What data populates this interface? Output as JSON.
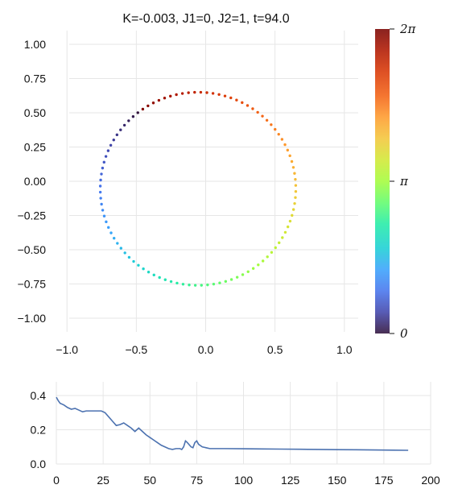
{
  "chart_data": [
    {
      "type": "scatter",
      "title": "K=-0.003, J1=0, J2=1, t=94.0",
      "xlim": [
        -1.1,
        1.1
      ],
      "ylim": [
        -1.1,
        1.1
      ],
      "xticks": [
        "−1.0",
        "−0.5",
        "0.0",
        "0.5",
        "1.0"
      ],
      "xtick_values": [
        -1.0,
        -0.5,
        0.0,
        0.5,
        1.0
      ],
      "yticks": [
        "1.00",
        "0.75",
        "0.50",
        "0.25",
        "0.00",
        "−0.25",
        "−0.50",
        "−0.75",
        "−1.00"
      ],
      "ytick_values": [
        1.0,
        0.75,
        0.5,
        0.25,
        0.0,
        -0.25,
        -0.5,
        -0.75,
        -1.0
      ],
      "grid": true,
      "series": [
        {
          "points_description": "points on a circle, phase from 0 (dark blue) to 2π (dark red)",
          "center": [
            -0.055,
            -0.055
          ],
          "radius": 0.705,
          "count": 100,
          "start_angle_deg": 128,
          "direction": "counterclockwise"
        }
      ],
      "colorbar": {
        "colormap": "turbo",
        "range": [
          0,
          6.2832
        ],
        "tick_labels": [
          "2π",
          "π",
          "0"
        ],
        "tick_values": [
          6.2832,
          3.1416,
          0
        ]
      }
    },
    {
      "type": "line",
      "xlim": [
        0,
        200
      ],
      "ylim": [
        0,
        0.48
      ],
      "xticks": [
        "0",
        "25",
        "50",
        "75",
        "100",
        "125",
        "150",
        "175",
        "200"
      ],
      "xtick_values": [
        0,
        25,
        50,
        75,
        100,
        125,
        150,
        175,
        200
      ],
      "yticks": [
        "0.4",
        "0.2",
        "0.0"
      ],
      "ytick_values": [
        0.4,
        0.2,
        0.0
      ],
      "grid": true,
      "color": "#4c72b0",
      "series": [
        {
          "x": [
            0,
            1,
            2,
            4,
            6,
            8,
            10,
            12,
            14,
            16,
            18,
            20,
            22,
            24,
            26,
            28,
            30,
            32,
            34,
            36,
            38,
            40,
            41,
            42,
            43,
            44,
            46,
            48,
            50,
            52,
            54,
            56,
            58,
            60,
            62,
            64,
            66,
            67,
            68,
            69,
            70,
            72,
            73,
            74,
            75,
            76,
            78,
            80,
            82,
            84,
            90,
            100,
            110,
            120,
            130,
            140,
            150,
            160,
            170,
            180,
            188
          ],
          "y": [
            0.39,
            0.37,
            0.355,
            0.345,
            0.33,
            0.32,
            0.325,
            0.315,
            0.305,
            0.31,
            0.31,
            0.31,
            0.31,
            0.31,
            0.3,
            0.275,
            0.25,
            0.225,
            0.23,
            0.24,
            0.225,
            0.21,
            0.2,
            0.19,
            0.2,
            0.21,
            0.19,
            0.17,
            0.155,
            0.14,
            0.125,
            0.11,
            0.1,
            0.09,
            0.085,
            0.09,
            0.09,
            0.085,
            0.1,
            0.135,
            0.125,
            0.1,
            0.095,
            0.125,
            0.135,
            0.115,
            0.1,
            0.095,
            0.09,
            0.09,
            0.09,
            0.089,
            0.088,
            0.087,
            0.086,
            0.085,
            0.084,
            0.083,
            0.082,
            0.081,
            0.08
          ]
        }
      ]
    }
  ]
}
